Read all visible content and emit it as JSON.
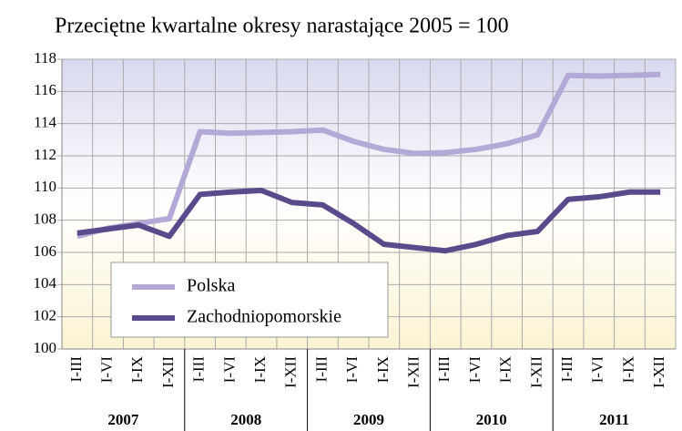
{
  "chart_data": {
    "type": "line",
    "title": "Przeciętne kwartalne okresy narastające 2005 = 100",
    "categories": [
      "I-III",
      "I-VI",
      "I-IX",
      "I-XII",
      "I-III",
      "I-VI",
      "I-IX",
      "I-XII",
      "I-III",
      "I-VI",
      "I-IX",
      "I-XII",
      "I-III",
      "I-VI",
      "I-IX",
      "I-XII",
      "I-III",
      "I-VI",
      "I-IX",
      "I-XII"
    ],
    "groups": [
      "2007",
      "2008",
      "2009",
      "2010",
      "2011"
    ],
    "series": [
      {
        "name": "Polska",
        "color": "#b3a8d6",
        "values": [
          107.0,
          107.5,
          107.8,
          108.1,
          113.5,
          113.4,
          113.45,
          113.5,
          113.6,
          112.9,
          112.4,
          112.15,
          112.2,
          112.4,
          112.75,
          113.3,
          117.0,
          116.95,
          117.0,
          117.05
        ]
      },
      {
        "name": "Zachodniopomorskie",
        "color": "#5a4a8c",
        "values": [
          107.2,
          107.45,
          107.7,
          107.0,
          109.6,
          109.75,
          109.85,
          109.1,
          108.95,
          107.8,
          106.5,
          106.3,
          106.1,
          106.5,
          107.05,
          107.3,
          109.3,
          109.45,
          109.75,
          109.75
        ]
      }
    ],
    "ylim": [
      100,
      118
    ],
    "yticks": [
      100,
      102,
      104,
      106,
      108,
      110,
      112,
      114,
      116,
      118
    ],
    "grid": true
  }
}
